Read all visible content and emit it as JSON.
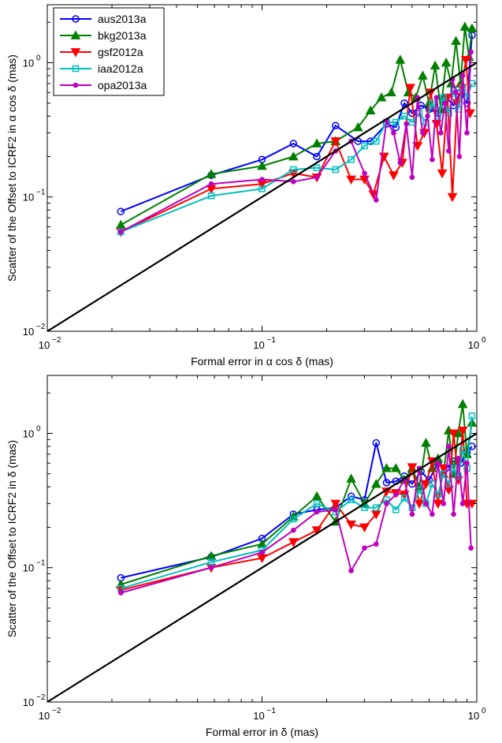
{
  "colors": {
    "aus2013a": "#0000ff",
    "bkg2013a": "#008000",
    "gsf2012a": "#ff0000",
    "iaa2012a": "#00bfbf",
    "opa2013a": "#bf00bf",
    "reference": "#000000"
  },
  "markers": {
    "aus2013a": "circle",
    "bkg2013a": "triangle-up",
    "gsf2012a": "triangle-down",
    "iaa2012a": "square",
    "opa2013a": "dot"
  },
  "chart_data": [
    {
      "type": "line",
      "xlabel": "Formal error in α cos δ (mas)",
      "ylabel": "Scatter of the Offset to ICRF2 in α cos δ (mas)",
      "xscale": "log",
      "yscale": "log",
      "xlim": [
        0.01,
        1
      ],
      "ylim": [
        0.01,
        2.7
      ],
      "xticks": [
        {
          "base": "10",
          "exp": "−2"
        },
        {
          "base": "10",
          "exp": "−1"
        },
        {
          "base": "10",
          "exp": "0"
        }
      ],
      "yticks": [
        {
          "base": "10",
          "exp": "−2"
        },
        {
          "base": "10",
          "exp": "−1"
        },
        {
          "base": "10",
          "exp": "0"
        }
      ],
      "legend": {
        "placement": "top-left",
        "entries": [
          "aus2013a",
          "bkg2013a",
          "gsf2012a",
          "iaa2012a",
          "opa2013a"
        ]
      },
      "reference_line": {
        "x": [
          0.01,
          1
        ],
        "y": [
          0.01,
          1
        ]
      },
      "series": [
        {
          "name": "aus2013a",
          "x": [
            0.022,
            0.058,
            0.1,
            0.14,
            0.18,
            0.22,
            0.28,
            0.32,
            0.38,
            0.42,
            0.46,
            0.5,
            0.55,
            0.6,
            0.66,
            0.72,
            0.78,
            0.84,
            0.9,
            0.95
          ],
          "y": [
            0.078,
            0.145,
            0.19,
            0.25,
            0.2,
            0.34,
            0.26,
            0.26,
            0.35,
            0.33,
            0.5,
            0.42,
            0.48,
            0.45,
            0.42,
            0.55,
            0.48,
            0.6,
            0.5,
            1.6
          ]
        },
        {
          "name": "bkg2013a",
          "x": [
            0.022,
            0.058,
            0.1,
            0.14,
            0.18,
            0.22,
            0.28,
            0.32,
            0.36,
            0.4,
            0.44,
            0.48,
            0.52,
            0.56,
            0.6,
            0.64,
            0.68,
            0.72,
            0.76,
            0.8,
            0.84,
            0.88,
            0.92,
            0.95
          ],
          "y": [
            0.062,
            0.148,
            0.17,
            0.2,
            0.25,
            0.26,
            0.33,
            0.44,
            0.55,
            0.6,
            1.05,
            0.6,
            0.55,
            0.8,
            0.5,
            0.95,
            0.45,
            1.0,
            0.7,
            1.45,
            0.7,
            1.85,
            1.1,
            1.8
          ]
        },
        {
          "name": "gsf2012a",
          "x": [
            0.022,
            0.058,
            0.1,
            0.14,
            0.18,
            0.22,
            0.26,
            0.3,
            0.33,
            0.37,
            0.41,
            0.45,
            0.49,
            0.53,
            0.57,
            0.61,
            0.65,
            0.69,
            0.73,
            0.77,
            0.81,
            0.85,
            0.89,
            0.93
          ],
          "y": [
            0.055,
            0.115,
            0.125,
            0.15,
            0.14,
            0.26,
            0.135,
            0.135,
            0.105,
            0.2,
            0.145,
            0.18,
            0.65,
            0.24,
            0.3,
            0.6,
            0.35,
            0.15,
            0.55,
            0.1,
            0.5,
            0.65,
            1.05,
            0.42
          ]
        },
        {
          "name": "iaa2012a",
          "x": [
            0.022,
            0.058,
            0.1,
            0.14,
            0.18,
            0.22,
            0.26,
            0.3,
            0.34,
            0.38,
            0.42,
            0.46,
            0.5,
            0.54,
            0.58,
            0.62,
            0.66,
            0.7,
            0.74,
            0.78,
            0.82,
            0.86,
            0.9,
            0.95
          ],
          "y": [
            0.055,
            0.102,
            0.115,
            0.16,
            0.165,
            0.16,
            0.19,
            0.24,
            0.26,
            0.36,
            0.36,
            0.4,
            0.36,
            0.42,
            0.36,
            0.5,
            0.4,
            0.55,
            0.42,
            0.62,
            0.45,
            0.65,
            0.55,
            0.7
          ]
        },
        {
          "name": "opa2013a",
          "x": [
            0.022,
            0.058,
            0.1,
            0.14,
            0.18,
            0.22,
            0.26,
            0.3,
            0.34,
            0.38,
            0.41,
            0.44,
            0.47,
            0.5,
            0.53,
            0.56,
            0.59,
            0.62,
            0.65,
            0.68,
            0.71,
            0.74,
            0.77,
            0.8,
            0.83,
            0.86,
            0.9,
            0.94
          ],
          "y": [
            0.055,
            0.125,
            0.135,
            0.13,
            0.14,
            0.22,
            0.26,
            0.15,
            0.095,
            0.37,
            0.3,
            0.18,
            0.35,
            0.14,
            0.55,
            0.3,
            0.4,
            0.19,
            0.55,
            0.3,
            0.5,
            0.22,
            0.75,
            0.6,
            0.2,
            0.8,
            0.3,
            1.2
          ]
        }
      ]
    },
    {
      "type": "line",
      "xlabel": "Formal error in δ (mas)",
      "ylabel": "Scatter of the Offset to ICRF2 in δ (mas)",
      "xscale": "log",
      "yscale": "log",
      "xlim": [
        0.01,
        1
      ],
      "ylim": [
        0.01,
        2.7
      ],
      "xticks": [
        {
          "base": "10",
          "exp": "−2"
        },
        {
          "base": "10",
          "exp": "−1"
        },
        {
          "base": "10",
          "exp": "0"
        }
      ],
      "yticks": [
        {
          "base": "10",
          "exp": "−2"
        },
        {
          "base": "10",
          "exp": "−1"
        },
        {
          "base": "10",
          "exp": "0"
        }
      ],
      "reference_line": {
        "x": [
          0.01,
          1
        ],
        "y": [
          0.01,
          1
        ]
      },
      "series": [
        {
          "name": "aus2013a",
          "x": [
            0.022,
            0.058,
            0.1,
            0.14,
            0.18,
            0.22,
            0.26,
            0.3,
            0.34,
            0.38,
            0.42,
            0.46,
            0.5,
            0.55,
            0.6,
            0.66,
            0.72,
            0.78,
            0.84,
            0.9,
            0.95
          ],
          "y": [
            0.084,
            0.12,
            0.165,
            0.25,
            0.27,
            0.28,
            0.34,
            0.32,
            0.85,
            0.43,
            0.44,
            0.48,
            0.42,
            0.52,
            0.45,
            0.6,
            0.55,
            0.62,
            0.6,
            0.72,
            0.8
          ]
        },
        {
          "name": "bkg2013a",
          "x": [
            0.022,
            0.058,
            0.1,
            0.14,
            0.18,
            0.22,
            0.26,
            0.3,
            0.34,
            0.38,
            0.42,
            0.46,
            0.5,
            0.54,
            0.58,
            0.62,
            0.66,
            0.7,
            0.74,
            0.78,
            0.82,
            0.86,
            0.9,
            0.95
          ],
          "y": [
            0.075,
            0.122,
            0.15,
            0.24,
            0.34,
            0.22,
            0.46,
            0.3,
            0.42,
            0.55,
            0.55,
            0.45,
            0.55,
            0.4,
            0.85,
            0.55,
            0.65,
            0.5,
            1.05,
            0.5,
            1.0,
            1.65,
            0.7,
            1.2
          ]
        },
        {
          "name": "gsf2012a",
          "x": [
            0.022,
            0.058,
            0.1,
            0.14,
            0.18,
            0.22,
            0.26,
            0.3,
            0.34,
            0.38,
            0.42,
            0.46,
            0.5,
            0.54,
            0.58,
            0.62,
            0.66,
            0.7,
            0.74,
            0.78,
            0.82,
            0.86,
            0.9,
            0.95
          ],
          "y": [
            0.068,
            0.1,
            0.118,
            0.155,
            0.19,
            0.3,
            0.21,
            0.2,
            0.25,
            0.37,
            0.36,
            0.35,
            0.56,
            0.3,
            0.42,
            0.62,
            0.3,
            0.55,
            0.38,
            1.0,
            0.45,
            1.05,
            0.3,
            0.3
          ]
        },
        {
          "name": "iaa2012a",
          "x": [
            0.022,
            0.058,
            0.1,
            0.14,
            0.18,
            0.22,
            0.26,
            0.3,
            0.34,
            0.38,
            0.42,
            0.46,
            0.5,
            0.54,
            0.58,
            0.62,
            0.66,
            0.7,
            0.74,
            0.78,
            0.82,
            0.86,
            0.9,
            0.95
          ],
          "y": [
            0.07,
            0.11,
            0.135,
            0.23,
            0.3,
            0.26,
            0.32,
            0.28,
            0.28,
            0.32,
            0.27,
            0.33,
            0.28,
            0.38,
            0.3,
            0.42,
            0.35,
            0.5,
            0.42,
            0.55,
            0.48,
            0.75,
            0.55,
            1.35
          ]
        },
        {
          "name": "opa2013a",
          "x": [
            0.022,
            0.058,
            0.1,
            0.14,
            0.18,
            0.22,
            0.26,
            0.3,
            0.34,
            0.38,
            0.42,
            0.46,
            0.5,
            0.54,
            0.58,
            0.62,
            0.66,
            0.7,
            0.74,
            0.78,
            0.82,
            0.86,
            0.9,
            0.94
          ],
          "y": [
            0.065,
            0.1,
            0.13,
            0.19,
            0.26,
            0.27,
            0.095,
            0.14,
            0.15,
            0.3,
            0.35,
            0.45,
            0.25,
            0.55,
            0.3,
            0.25,
            0.6,
            0.3,
            0.8,
            0.25,
            0.65,
            0.3,
            0.6,
            0.14
          ]
        }
      ]
    }
  ]
}
